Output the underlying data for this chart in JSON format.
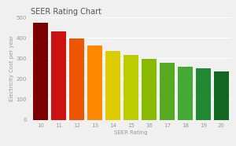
{
  "title": "SEER Rating Chart",
  "xlabel": "SEER Rating",
  "ylabel": "Electricity Cost per year",
  "seer_ratings": [
    10,
    11,
    12,
    13,
    14,
    15,
    16,
    17,
    18,
    19,
    20
  ],
  "values": [
    475,
    432,
    397,
    362,
    338,
    315,
    296,
    278,
    261,
    252,
    238
  ],
  "bar_colors": [
    "#7B0000",
    "#CC1111",
    "#EE5500",
    "#FF8800",
    "#DDCC00",
    "#BBCC00",
    "#88BB00",
    "#55AA22",
    "#44AA33",
    "#228833",
    "#116622"
  ],
  "ylim": [
    0,
    500
  ],
  "yticks": [
    0,
    100,
    200,
    300,
    400,
    500
  ],
  "background_color": "#f0f0f0",
  "grid_color": "#ffffff",
  "title_fontsize": 7,
  "axis_fontsize": 5,
  "tick_fontsize": 5
}
